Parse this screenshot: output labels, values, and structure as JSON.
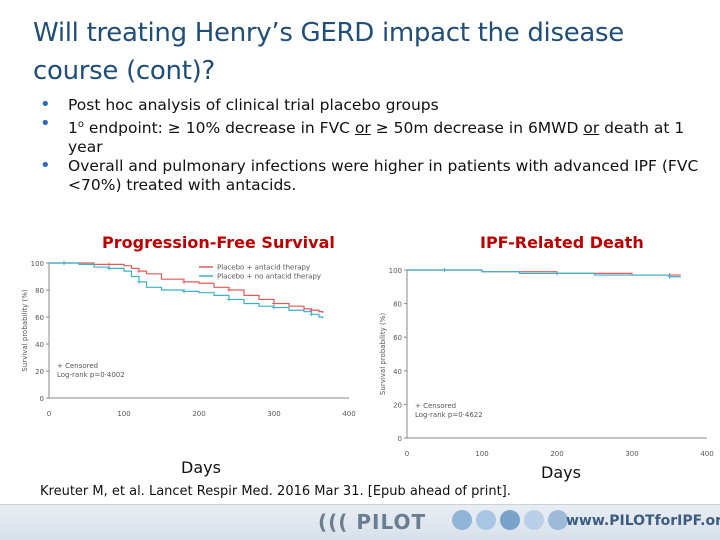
{
  "slide": {
    "title": "Will treating Henry’s GERD impact the disease course (cont)?",
    "bullets": [
      {
        "parts": [
          {
            "t": "Post hoc analysis of clinical trial placebo groups",
            "u": false
          }
        ]
      },
      {
        "parts": [
          {
            "t": "1",
            "u": false
          },
          {
            "t": "o",
            "u": false,
            "sup": true
          },
          {
            "t": " endpoint: ≥ 10% decrease in FVC ",
            "u": false
          },
          {
            "t": "or",
            "u": true
          },
          {
            "t": " ≥ 50m decrease in 6MWD ",
            "u": false
          },
          {
            "t": "or",
            "u": true
          },
          {
            "t": " death at 1 year",
            "u": false
          }
        ]
      },
      {
        "parts": [
          {
            "t": "Overall and pulmonary infections were higher in patients with advanced IPF (FVC <70%) treated with antacids.",
            "u": false
          }
        ]
      }
    ],
    "citation": "Kreuter M, et al. Lancet Respir Med. 2016 Mar 31. [Epub ahead of print].",
    "footer": {
      "logo_text": "PILOT",
      "url": "www.PILOTforIPF.org"
    }
  },
  "chart_data": [
    {
      "type": "line",
      "title": "Progression-Free Survival",
      "xlabel": "Days",
      "ylabel": "Survival probability (%)",
      "xlim": [
        0,
        400
      ],
      "ylim": [
        0,
        100
      ],
      "x_ticks": [
        "0",
        "100",
        "200",
        "300",
        "400"
      ],
      "y_ticks": [
        "0",
        "20",
        "40",
        "60",
        "80",
        "100"
      ],
      "legend": [
        "Placebo + antacid therapy",
        "Placebo + no antacid therapy"
      ],
      "annotation": [
        "+ Censored",
        "Log-rank p=0·4002"
      ],
      "series": [
        {
          "name": "Placebo + antacid therapy",
          "color": "#e05a5a",
          "x": [
            0,
            20,
            40,
            60,
            80,
            100,
            110,
            120,
            130,
            150,
            180,
            200,
            220,
            240,
            260,
            280,
            300,
            320,
            340,
            350,
            360,
            365
          ],
          "y": [
            100,
            100,
            100,
            99,
            99,
            98,
            96,
            94,
            92,
            88,
            86,
            85,
            82,
            80,
            76,
            73,
            70,
            68,
            66,
            65,
            64,
            63
          ]
        },
        {
          "name": "Placebo + no antacid therapy",
          "color": "#3bb0c9",
          "x": [
            0,
            20,
            40,
            60,
            80,
            100,
            110,
            120,
            130,
            150,
            180,
            200,
            220,
            240,
            260,
            280,
            300,
            320,
            340,
            350,
            360,
            365
          ],
          "y": [
            100,
            100,
            99,
            97,
            96,
            94,
            90,
            86,
            82,
            80,
            79,
            78,
            76,
            73,
            70,
            68,
            67,
            65,
            64,
            62,
            60,
            59
          ]
        }
      ]
    },
    {
      "type": "line",
      "title": "IPF-Related Death",
      "xlabel": "Days",
      "ylabel": "Survival probability (%)",
      "xlim": [
        0,
        400
      ],
      "ylim": [
        0,
        100
      ],
      "x_ticks": [
        "0",
        "100",
        "200",
        "300",
        "400"
      ],
      "y_ticks": [
        "0",
        "20",
        "40",
        "60",
        "80",
        "100"
      ],
      "annotation": [
        "+ Censored",
        "Log-rank p=0·4622"
      ],
      "series": [
        {
          "name": "Placebo + antacid therapy",
          "color": "#e05a5a",
          "x": [
            0,
            50,
            100,
            150,
            200,
            250,
            300,
            350,
            365
          ],
          "y": [
            100,
            100,
            99,
            99,
            98,
            98,
            97,
            97,
            97
          ]
        },
        {
          "name": "Placebo + no antacid therapy",
          "color": "#3bb0c9",
          "x": [
            0,
            50,
            100,
            150,
            200,
            250,
            300,
            350,
            365
          ],
          "y": [
            100,
            100,
            99,
            98,
            98,
            97,
            97,
            96,
            96
          ]
        }
      ]
    }
  ]
}
